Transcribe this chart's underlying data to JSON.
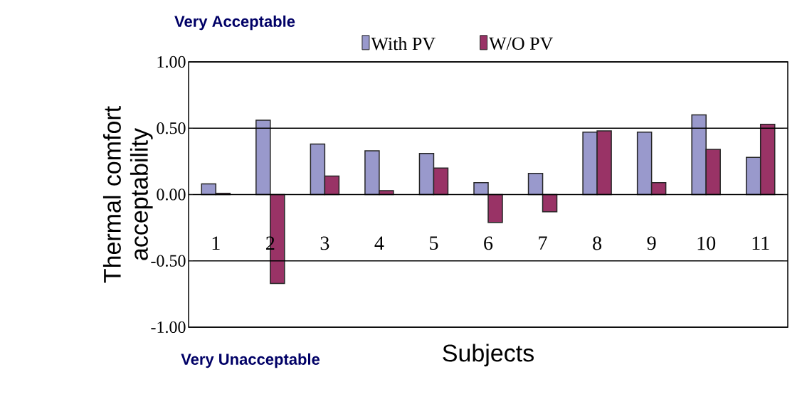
{
  "chart_data": {
    "type": "bar",
    "xlabel": "Subjects",
    "ylabel": "Thermal comfort acceptability",
    "categories": [
      "1",
      "2",
      "3",
      "4",
      "5",
      "6",
      "7",
      "8",
      "9",
      "10",
      "11"
    ],
    "series": [
      {
        "name": "With PV",
        "color": "#9999cc",
        "values": [
          0.08,
          0.56,
          0.38,
          0.33,
          0.31,
          0.09,
          0.16,
          0.47,
          0.47,
          0.6,
          0.28
        ]
      },
      {
        "name": "W/O PV",
        "color": "#993366",
        "values": [
          0.01,
          -0.67,
          0.14,
          0.03,
          0.2,
          -0.21,
          -0.13,
          0.48,
          0.09,
          0.34,
          0.53
        ]
      }
    ],
    "ylim": [
      -1,
      1
    ],
    "yticks": [
      {
        "value": -1,
        "label": "-1.00"
      },
      {
        "value": -0.5,
        "label": "-0.50"
      },
      {
        "value": 0,
        "label": "0.00"
      },
      {
        "value": 0.5,
        "label": "0.50"
      },
      {
        "value": 1,
        "label": "1.00"
      }
    ],
    "grid": "y",
    "legend": "top",
    "annotations": [
      "Very Acceptable",
      "Very Unacceptable"
    ]
  }
}
